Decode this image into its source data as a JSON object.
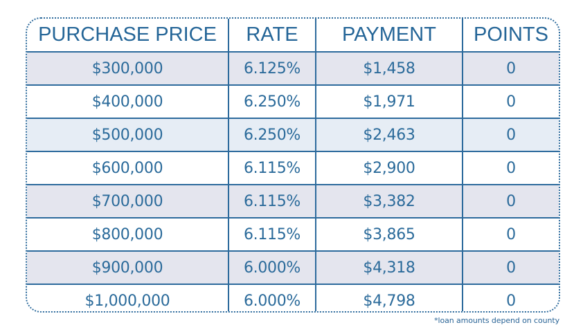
{
  "table": {
    "headers": [
      "PURCHASE PRICE",
      "RATE",
      "PAYMENT",
      "POINTS"
    ],
    "rows": [
      {
        "purchase_price": "$300,000",
        "rate": "6.125%",
        "payment": "$1,458",
        "points": "0",
        "shade": "grey"
      },
      {
        "purchase_price": "$400,000",
        "rate": "6.250%",
        "payment": "$1,971",
        "points": "0",
        "shade": "white"
      },
      {
        "purchase_price": "$500,000",
        "rate": "6.250%",
        "payment": "$2,463",
        "points": "0",
        "shade": "blue"
      },
      {
        "purchase_price": "$600,000",
        "rate": "6.115%",
        "payment": "$2,900",
        "points": "0",
        "shade": "white"
      },
      {
        "purchase_price": "$700,000",
        "rate": "6.115%",
        "payment": "$3,382",
        "points": "0",
        "shade": "grey"
      },
      {
        "purchase_price": "$800,000",
        "rate": "6.115%",
        "payment": "$3,865",
        "points": "0",
        "shade": "white"
      },
      {
        "purchase_price": "$900,000",
        "rate": "6.000%",
        "payment": "$4,318",
        "points": "0",
        "shade": "grey"
      },
      {
        "purchase_price": "$1,000,000",
        "rate": "6.000%",
        "payment": "$4,798",
        "points": "0",
        "shade": "white"
      }
    ]
  },
  "footnote": "*loan amounts depend on county",
  "colors": {
    "text": "#2a6496",
    "border": "#2c6a9c",
    "row_grey": "#e4e5ee",
    "row_blue": "#e6edf5",
    "row_white": "#ffffff"
  }
}
